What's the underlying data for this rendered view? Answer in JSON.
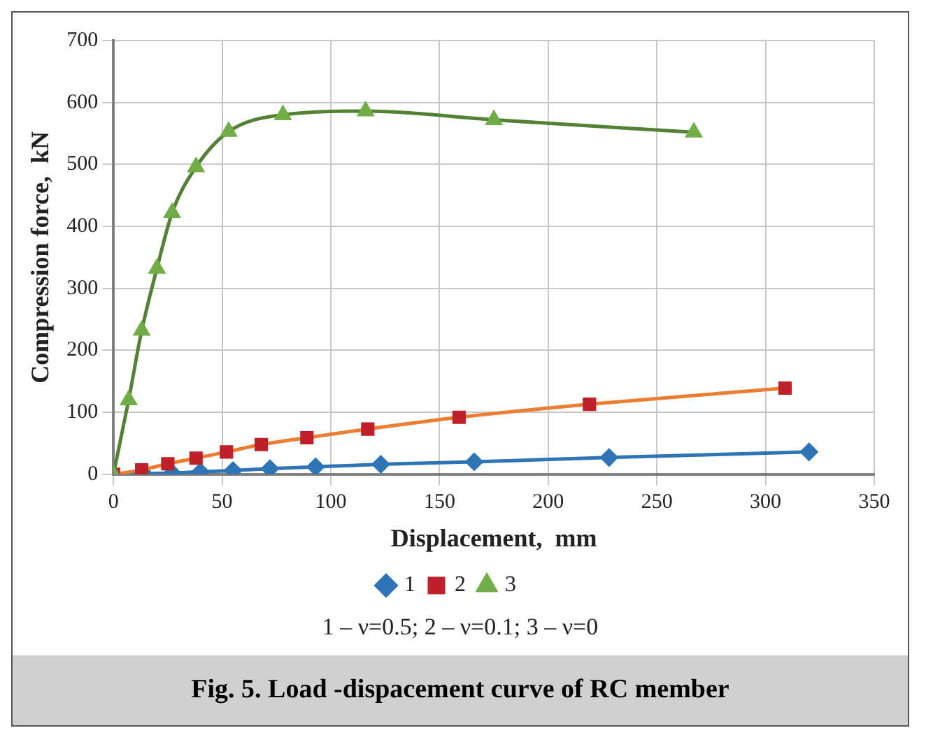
{
  "chart_data": {
    "type": "line",
    "title": "Fig. 5. Load -dispacement curve of RC member",
    "xlabel": "Displacement,  mm",
    "ylabel": "Compression force,  kN",
    "xlim": [
      0,
      350
    ],
    "xticks": [
      0,
      50,
      100,
      150,
      200,
      250,
      300,
      350
    ],
    "ylim": [
      0,
      700
    ],
    "yticks": [
      0,
      100,
      200,
      300,
      400,
      500,
      600,
      700
    ],
    "grid": true,
    "legend": "bottom",
    "annotations": [
      "1 – ν=0.5;   2 – ν=0.1;  3 – ν=0"
    ],
    "series": [
      {
        "name": "1",
        "color": "#2e75b6",
        "marker": "diamond",
        "x": [
          0,
          14,
          27,
          40,
          55,
          72,
          93,
          123,
          166,
          228,
          320
        ],
        "values": [
          0,
          1,
          2,
          4,
          6,
          9,
          12,
          16,
          20,
          27,
          36
        ]
      },
      {
        "name": "2",
        "color": "#ed7d31",
        "marker": "square",
        "x": [
          0,
          13,
          25,
          38,
          52,
          68,
          89,
          117,
          159,
          219,
          309
        ],
        "values": [
          0,
          7,
          17,
          26,
          36,
          48,
          59,
          73,
          92,
          113,
          139
        ]
      },
      {
        "name": "3",
        "color": "#548235",
        "marker": "triangle",
        "x": [
          0,
          7,
          13,
          20,
          27,
          38,
          53,
          78,
          116,
          175,
          267
        ],
        "values": [
          0,
          120,
          232,
          332,
          422,
          496,
          553,
          580,
          586,
          572,
          552
        ]
      }
    ]
  }
}
